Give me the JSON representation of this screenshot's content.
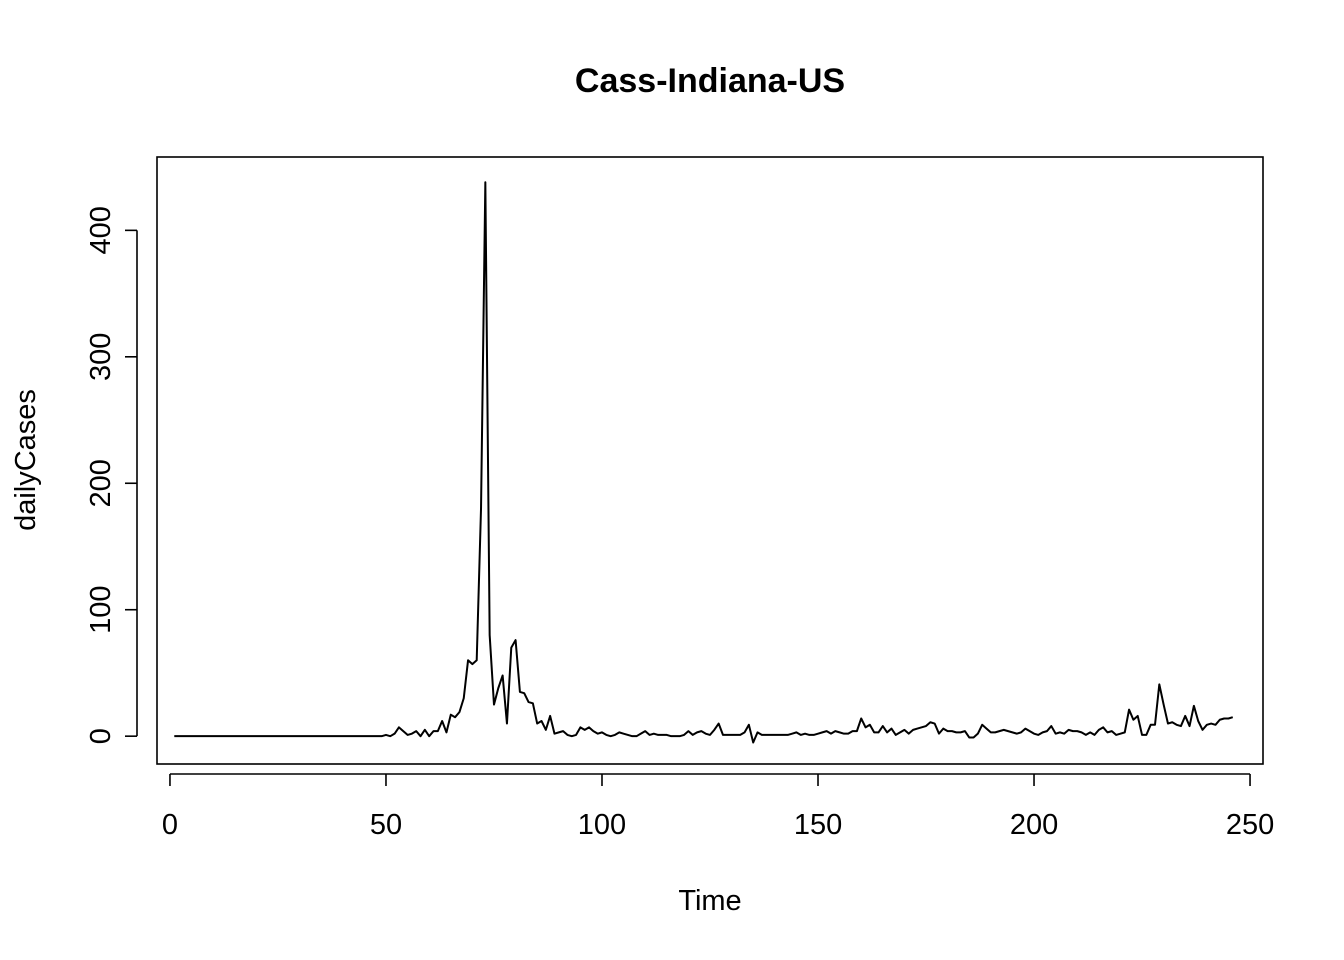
{
  "chart_data": {
    "type": "line",
    "title": "Cass-Indiana-US",
    "xlabel": "Time",
    "ylabel": "dailyCases",
    "xlim": [
      -3,
      253
    ],
    "ylim": [
      -22,
      458
    ],
    "x_ticks": [
      0,
      50,
      100,
      150,
      200,
      250
    ],
    "y_ticks": [
      0,
      100,
      200,
      300,
      400
    ],
    "grid": false,
    "series_color": "#000000",
    "series": [
      {
        "x_start": 1,
        "values": [
          0,
          0,
          0,
          0,
          0,
          0,
          0,
          0,
          0,
          0,
          0,
          0,
          0,
          0,
          0,
          0,
          0,
          0,
          0,
          0,
          0,
          0,
          0,
          0,
          0,
          0,
          0,
          0,
          0,
          0,
          0,
          0,
          0,
          0,
          0,
          0,
          0,
          0,
          0,
          0,
          0,
          0,
          0,
          0,
          0,
          0,
          0,
          0,
          0,
          1,
          0,
          2,
          7,
          4,
          1,
          2,
          4,
          0,
          5,
          0,
          4,
          4,
          12,
          3,
          17,
          15,
          19,
          30,
          60,
          57,
          60,
          180,
          438,
          80,
          25,
          38,
          48,
          10,
          70,
          76,
          35,
          34,
          27,
          26,
          10,
          12,
          5,
          16,
          2,
          3,
          4,
          1,
          0,
          1,
          7,
          5,
          7,
          4,
          2,
          3,
          1,
          0,
          1,
          3,
          2,
          1,
          0,
          0,
          2,
          4,
          1,
          2,
          1,
          1,
          1,
          0,
          0,
          0,
          1,
          4,
          1,
          3,
          4,
          2,
          1,
          5,
          10,
          1,
          1,
          1,
          1,
          1,
          3,
          9,
          -5,
          3,
          1,
          1,
          1,
          1,
          1,
          1,
          1,
          2,
          3,
          1,
          2,
          1,
          1,
          2,
          3,
          4,
          2,
          4,
          3,
          2,
          2,
          4,
          4,
          14,
          7,
          9,
          3,
          3,
          8,
          3,
          6,
          1,
          3,
          5,
          2,
          5,
          6,
          7,
          8,
          11,
          10,
          2,
          6,
          4,
          4,
          3,
          3,
          4,
          -1,
          -1,
          2,
          9,
          6,
          3,
          3,
          4,
          5,
          4,
          3,
          2,
          3,
          6,
          4,
          2,
          1,
          3,
          4,
          8,
          2,
          3,
          2,
          5,
          4,
          4,
          3,
          1,
          3,
          1,
          5,
          7,
          3,
          4,
          1,
          2,
          3,
          21,
          13,
          16,
          1,
          1,
          9,
          9,
          41,
          25,
          10,
          11,
          9,
          8,
          16,
          8,
          24,
          12,
          5,
          9,
          10,
          9,
          13,
          14,
          14,
          15
        ]
      }
    ]
  }
}
